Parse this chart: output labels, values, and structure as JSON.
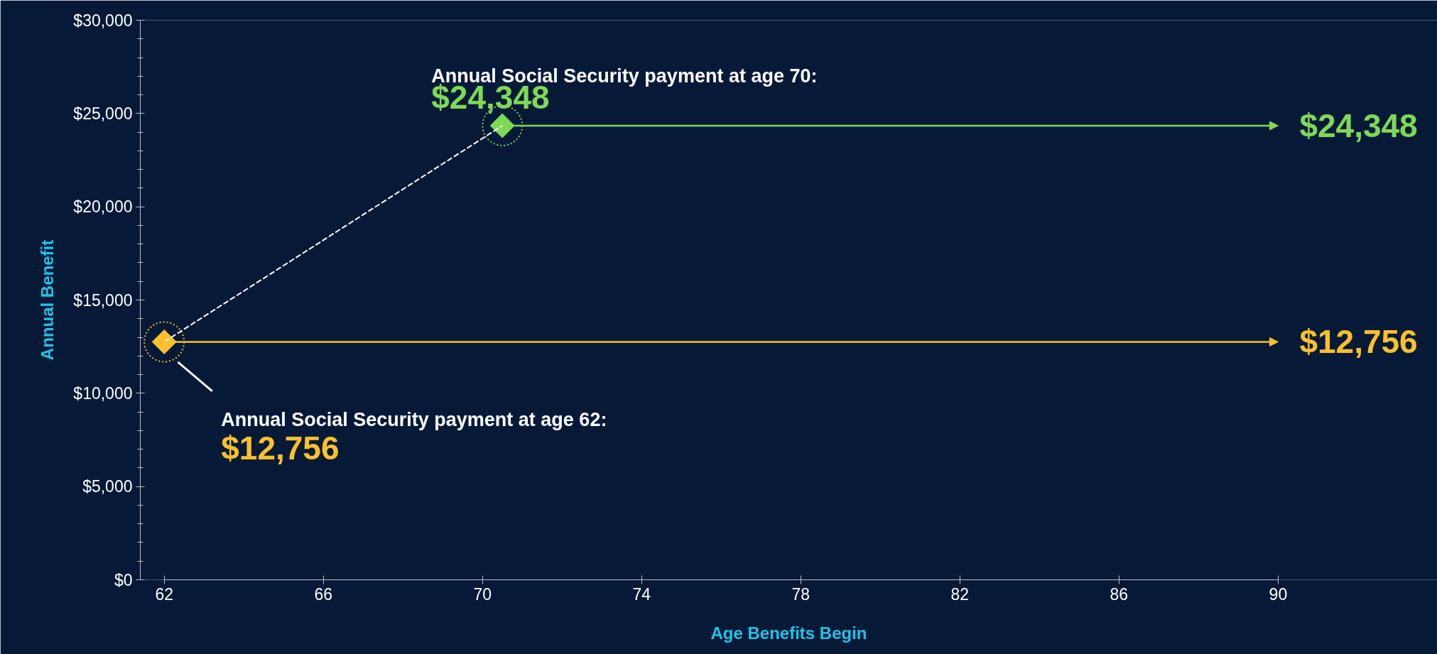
{
  "chart_data": {
    "type": "line",
    "xlabel": "Age Benefits Begin",
    "ylabel": "Annual Benefit",
    "xlim": [
      62,
      90
    ],
    "xticks": [
      62,
      66,
      70,
      74,
      78,
      82,
      86,
      90
    ],
    "ylim": [
      0,
      30000
    ],
    "yticks": [
      {
        "value": 0,
        "label": "$0"
      },
      {
        "value": 5000,
        "label": "$5,000"
      },
      {
        "value": 10000,
        "label": "$10,000"
      },
      {
        "value": 15000,
        "label": "$15,000"
      },
      {
        "value": 20000,
        "label": "$20,000"
      },
      {
        "value": 25000,
        "label": "$25,000"
      },
      {
        "value": 30000,
        "label": "$30,000"
      }
    ],
    "grid": false,
    "marker": "diamond",
    "series": [
      {
        "color": "#fcc02e",
        "x": [
          62,
          90
        ],
        "values": [
          12756,
          12756
        ],
        "value_labels": [
          "$12,756",
          "$12,756"
        ]
      },
      {
        "color": "#7ed957",
        "x": [
          70.5,
          90
        ],
        "values": [
          24348,
          24348
        ],
        "value_labels": [
          "$24,348",
          "$24,348"
        ]
      },
      {
        "color": "#ffffff",
        "x": [
          62,
          70.5
        ],
        "values": [
          12756,
          24348
        ],
        "line_style": "dashed",
        "marker": "none"
      }
    ],
    "annotations": [
      "Annual Social Security payment at age 62:",
      "Annual Social Security payment at age 70:"
    ]
  }
}
